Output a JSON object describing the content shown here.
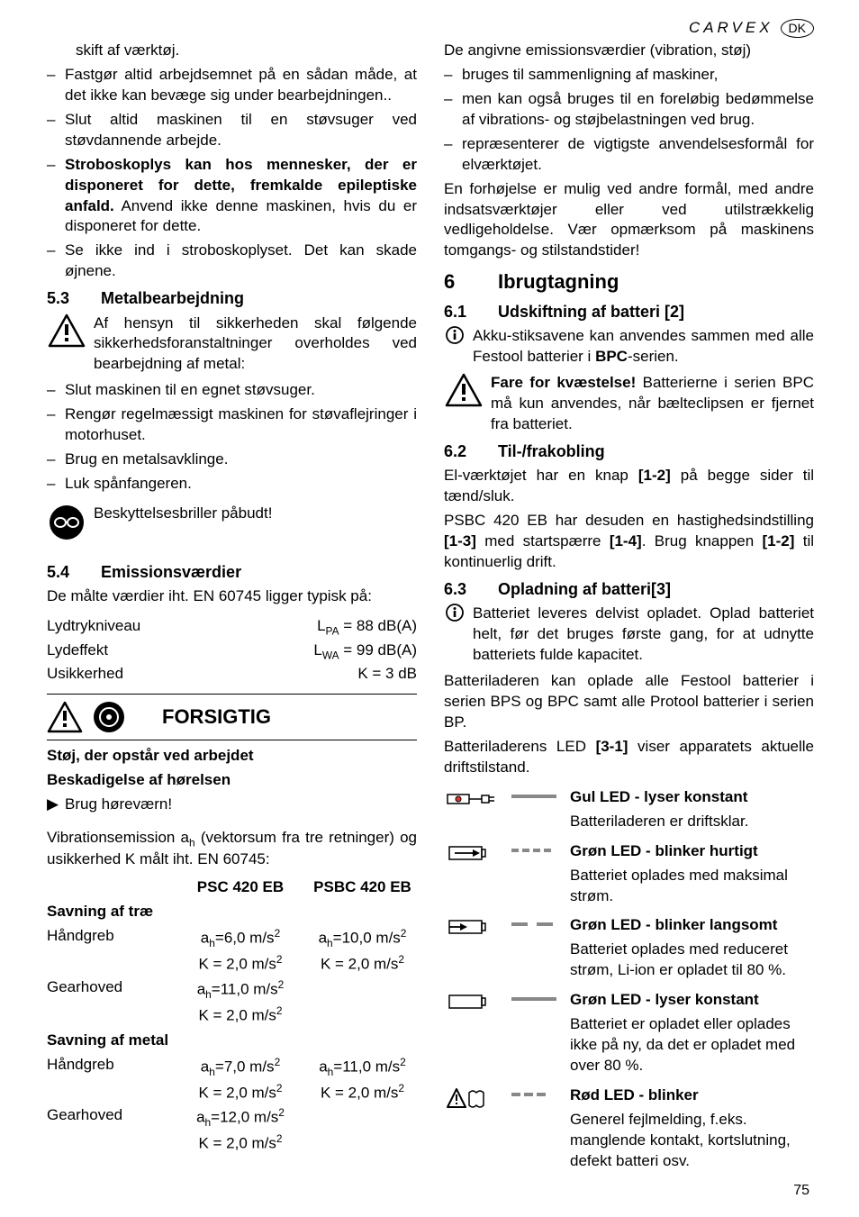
{
  "header": {
    "brand": "CARVEX",
    "country": "DK"
  },
  "left": {
    "intro": "skift af værktøj.",
    "bullets_a": [
      "Fastgør altid arbejdsemnet på en sådan måde, at det ikke kan bevæge sig under bearbejdningen..",
      "Slut altid maskinen til en støvsuger ved støvdannende arbejde."
    ],
    "strobe_bold": "Stroboskoplys kan hos mennesker, der er disponeret for dette, fremkalde epileptiske anfald.",
    "strobe_text": " Anvend ikke denne maskinen, hvis du er disponeret for dette.",
    "bullets_b": [
      "Se ikke ind i stroboskoplyset. Det kan skade øjnene."
    ],
    "sec53_num": "5.3",
    "sec53_title": "Metalbearbejdning",
    "sec53_warn": "Af hensyn til sikkerheden skal følgende sikkerhedsforanstaltninger overholdes ved bearbejdning af metal:",
    "sec53_bullets": [
      "Slut maskinen til en egnet støvsuger.",
      "Rengør regelmæssigt maskinen for støvaflejringer i motorhuset.",
      "Brug en metalsavklinge.",
      "Luk spånfangeren."
    ],
    "goggles": "Beskyttelsesbriller påbudt!",
    "sec54_num": "5.4",
    "sec54_title": "Emissionsværdier",
    "sec54_intro": "De målte værdier iht. EN 60745 ligger typisk på:",
    "emis_rows": [
      {
        "label": "Lydtrykniveau",
        "val_pre": "L",
        "val_sub": "PA",
        "val_post": " = 88 dB(A)"
      },
      {
        "label": "Lydeffekt",
        "val_pre": "L",
        "val_sub": "WA",
        "val_post": " = 99 dB(A)"
      },
      {
        "label": "Usikkerhed",
        "val_pre": "",
        "val_sub": "",
        "val_post": "K = 3 dB"
      }
    ],
    "caution": "FORSIGTIG",
    "caution_l1": "Støj, der opstår ved arbejdet",
    "caution_l2": "Beskadigelse af hørelsen",
    "caution_action": "Brug høreværn!",
    "vib_intro_pre": "Vibrationsemission a",
    "vib_intro_sub": "h",
    "vib_intro_post": " (vektorsum fra tre retninger) og usikkerhed K målt iht. EN 60745:",
    "vib_heads": [
      "",
      "PSC 420 EB",
      "PSBC 420 EB"
    ],
    "vib_sec1": "Savning af træ",
    "vib_sec1_rows": [
      {
        "label": "Håndgreb",
        "c1a": "a",
        "c1sub": "h",
        "c1b": "=6,0 m/s",
        "c2a": "a",
        "c2sub": "h",
        "c2b": "=10,0 m/s"
      },
      {
        "label": "",
        "c1a": "K = 2,0 m/s",
        "c1sub": "",
        "c1b": "",
        "c2a": "K = 2,0 m/s",
        "c2sub": "",
        "c2b": ""
      },
      {
        "label": "Gearhoved",
        "c1a": "a",
        "c1sub": "h",
        "c1b": "=11,0 m/s",
        "c2a": "",
        "c2sub": "",
        "c2b": ""
      },
      {
        "label": "",
        "c1a": "K = 2,0 m/s",
        "c1sub": "",
        "c1b": "",
        "c2a": "",
        "c2sub": "",
        "c2b": ""
      }
    ],
    "vib_sec2": "Savning af metal",
    "vib_sec2_rows": [
      {
        "label": "Håndgreb",
        "c1a": "a",
        "c1sub": "h",
        "c1b": "=7,0 m/s",
        "c2a": "a",
        "c2sub": "h",
        "c2b": "=11,0 m/s"
      },
      {
        "label": "",
        "c1a": "K = 2,0 m/s",
        "c1sub": "",
        "c1b": "",
        "c2a": "K = 2,0 m/s",
        "c2sub": "",
        "c2b": ""
      },
      {
        "label": "Gearhoved",
        "c1a": "a",
        "c1sub": "h",
        "c1b": "=12,0 m/s",
        "c2a": "",
        "c2sub": "",
        "c2b": ""
      },
      {
        "label": "",
        "c1a": "K = 2,0 m/s",
        "c1sub": "",
        "c1b": "",
        "c2a": "",
        "c2sub": "",
        "c2b": ""
      }
    ]
  },
  "right": {
    "intro": "De angivne emissionsværdier (vibration, støj)",
    "bullets": [
      "bruges til sammenligning af maskiner,",
      "men kan også bruges til en foreløbig bedømmelse af vibrations- og støjbelastningen ved brug.",
      "repræsenterer de vigtigste anvendelsesformål for elværktøjet."
    ],
    "para2": "En forhøjelse er mulig ved andre formål, med andre indsatsværktøjer eller ved utilstrækkelig vedligeholdelse. Vær opmærksom på maskinens tomgangs- og stilstandstider!",
    "sec6_num": "6",
    "sec6_title": "Ibrugtagning",
    "sec61_num": "6.1",
    "sec61_title": "Udskiftning af batteri [2]",
    "sec61_info_a": "Akku-stiksavene kan anvendes sammen med alle Festool batterier i ",
    "sec61_info_b": "BPC",
    "sec61_info_c": "-serien.",
    "sec61_warn_bold": "Fare for kvæstelse!",
    "sec61_warn_rest": " Batterierne i serien BPC må kun anvendes, når bælteclipsen er fjernet fra batteriet.",
    "sec62_num": "6.2",
    "sec62_title": "Til-/frakobling",
    "sec62_p1a": "El-værktøjet har en knap ",
    "sec62_p1b": "[1-2]",
    "sec62_p1c": " på begge sider til tænd/sluk.",
    "sec62_p2a": "PSBC 420 EB har desuden en hastighedsindstilling ",
    "sec62_p2b": "[1-3]",
    "sec62_p2c": " med startspærre ",
    "sec62_p2d": "[1-4]",
    "sec62_p2e": ". Brug knappen ",
    "sec62_p2f": "[1-2]",
    "sec62_p2g": " til kontinuerlig drift.",
    "sec63_num": "6.3",
    "sec63_title": "Opladning af batteri[3]",
    "sec63_info": "Batteriet leveres delvist opladet. Oplad batteriet helt, før det bruges første gang, for at udnytte batteriets fulde kapacitet.",
    "sec63_p1": "Batteriladeren  kan oplade alle Festool batterier i serien BPS og BPC samt alle Protool batterier i serien BP.",
    "sec63_p2a": "Batteriladerens LED ",
    "sec63_p2b": "[3-1]",
    "sec63_p2c": " viser apparatets aktuelle driftstilstand.",
    "led": [
      {
        "title": "Gul LED - lyser konstant",
        "desc": "Batteriladeren er driftsklar."
      },
      {
        "title": "Grøn LED - blinker hurtigt",
        "desc": "Batteriet oplades med maksimal strøm."
      },
      {
        "title": "Grøn LED - blinker langsomt",
        "desc": "Batteriet oplades med reduceret strøm, Li-ion er opladet til 80 %."
      },
      {
        "title": "Grøn LED - lyser konstant",
        "desc": "Batteriet er opladet eller oplades ikke på ny, da det er opladet med over 80 %."
      },
      {
        "title": "Rød LED - blinker",
        "desc": "Generel fejlmelding, f.eks. manglende kontakt, kortslutning, defekt batteri osv."
      }
    ]
  },
  "page_number": "75"
}
